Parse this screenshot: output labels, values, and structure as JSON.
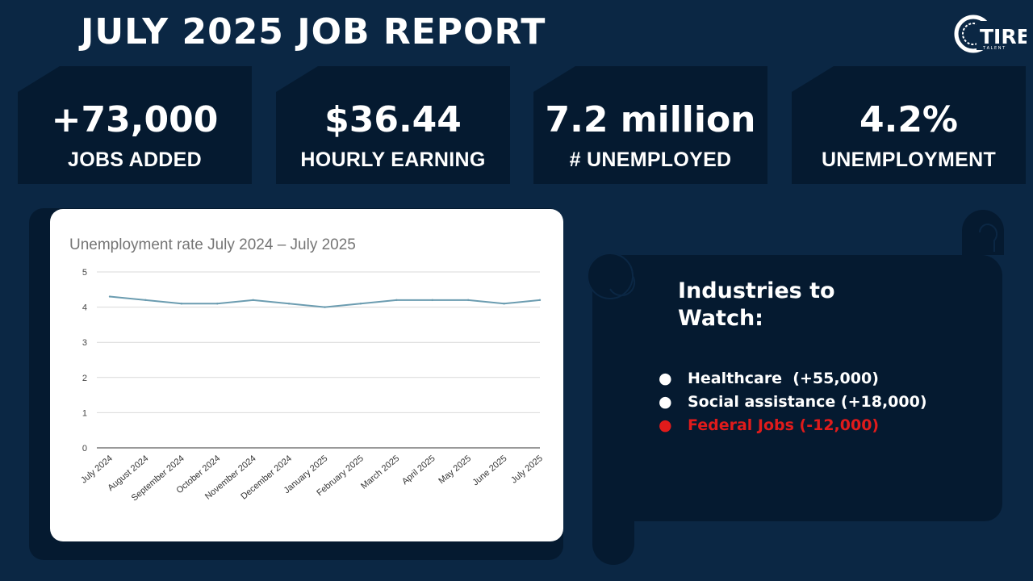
{
  "header": {
    "title": "JULY 2025 JOB REPORT",
    "logo_text": "TIRE",
    "logo_subtext": "T A L E N T"
  },
  "stats": [
    {
      "value": "+73,000",
      "label": "JOBS ADDED"
    },
    {
      "value": "$36.44",
      "label": "HOURLY EARNING"
    },
    {
      "value": "7.2 million",
      "label": "# UNEMPLOYED"
    },
    {
      "value": "4.2%",
      "label": "UNEMPLOYMENT"
    }
  ],
  "industries": {
    "title": "Industries to Watch:",
    "items": [
      {
        "text": "Healthcare  (+55,000)",
        "color": "#ffffff"
      },
      {
        "text": "Social assistance (+18,000)",
        "color": "#ffffff"
      },
      {
        "text": "Federal Jobs (-12,000)",
        "color": "#e01b1b"
      }
    ]
  },
  "colors": {
    "background": "#0b2744",
    "card": "#051a30",
    "line": "#6b9cb0",
    "negative": "#e01b1b"
  },
  "chart_data": {
    "type": "line",
    "title": "Unemployment rate July 2024 – July 2025",
    "categories": [
      "July 2024",
      "August 2024",
      "September 2024",
      "October 2024",
      "November 2024",
      "December 2024",
      "January 2025",
      "February 2025",
      "March 2025",
      "April 2025",
      "May 2025",
      "June 2025",
      "July 2025"
    ],
    "series": [
      {
        "values": [
          4.3,
          4.2,
          4.1,
          4.1,
          4.2,
          4.1,
          4.0,
          4.1,
          4.2,
          4.2,
          4.2,
          4.1,
          4.2
        ]
      }
    ],
    "yticks": [
      "0",
      "1",
      "2",
      "3",
      "4",
      "5"
    ],
    "ylim": [
      0,
      5
    ],
    "grid": true,
    "legend": "none"
  }
}
